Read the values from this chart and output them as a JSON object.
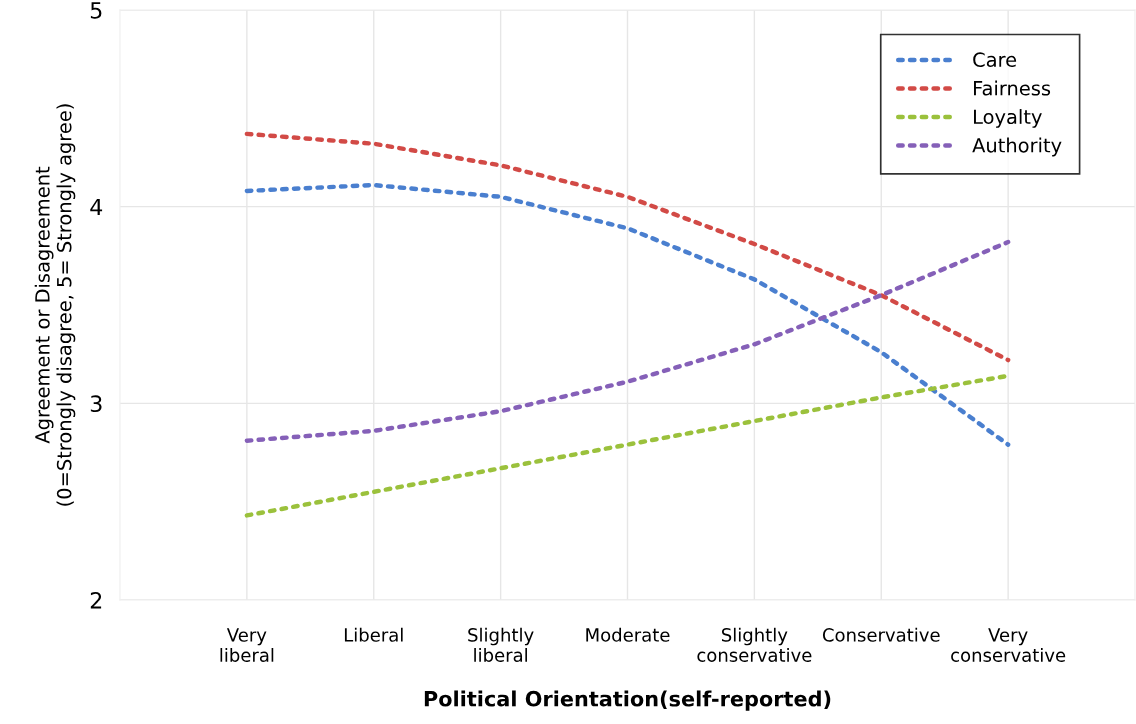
{
  "chart_data": {
    "type": "line",
    "xlabel": "Political Orientation(self-reported)",
    "ylabel": "Agreement or Disagreement\n(0=Strongly disagree, 5= Strongly agree)",
    "categories": [
      "Very\nliberal",
      "Liberal",
      "Slightly\nliberal",
      "Moderate",
      "Slightly\nconservative",
      "Conservative",
      "Very\nconservative"
    ],
    "series": [
      {
        "name": "Care",
        "color": "#4a7fcf",
        "values": [
          4.08,
          4.11,
          4.05,
          3.89,
          3.63,
          3.26,
          2.79
        ]
      },
      {
        "name": "Fairness",
        "color": "#d24a46",
        "values": [
          4.37,
          4.32,
          4.21,
          4.05,
          3.81,
          3.55,
          3.22
        ]
      },
      {
        "name": "Loyalty",
        "color": "#9bc13c",
        "values": [
          2.43,
          2.55,
          2.67,
          2.79,
          2.91,
          3.03,
          3.14
        ]
      },
      {
        "name": "Authority",
        "color": "#8560b8",
        "values": [
          2.81,
          2.86,
          2.96,
          3.11,
          3.3,
          3.55,
          3.82
        ]
      }
    ],
    "ylim": [
      2,
      5
    ],
    "yticks": [
      2,
      3,
      4,
      5
    ],
    "grid": true,
    "legend": "top right",
    "line_style": "dotted",
    "marker": "none"
  }
}
